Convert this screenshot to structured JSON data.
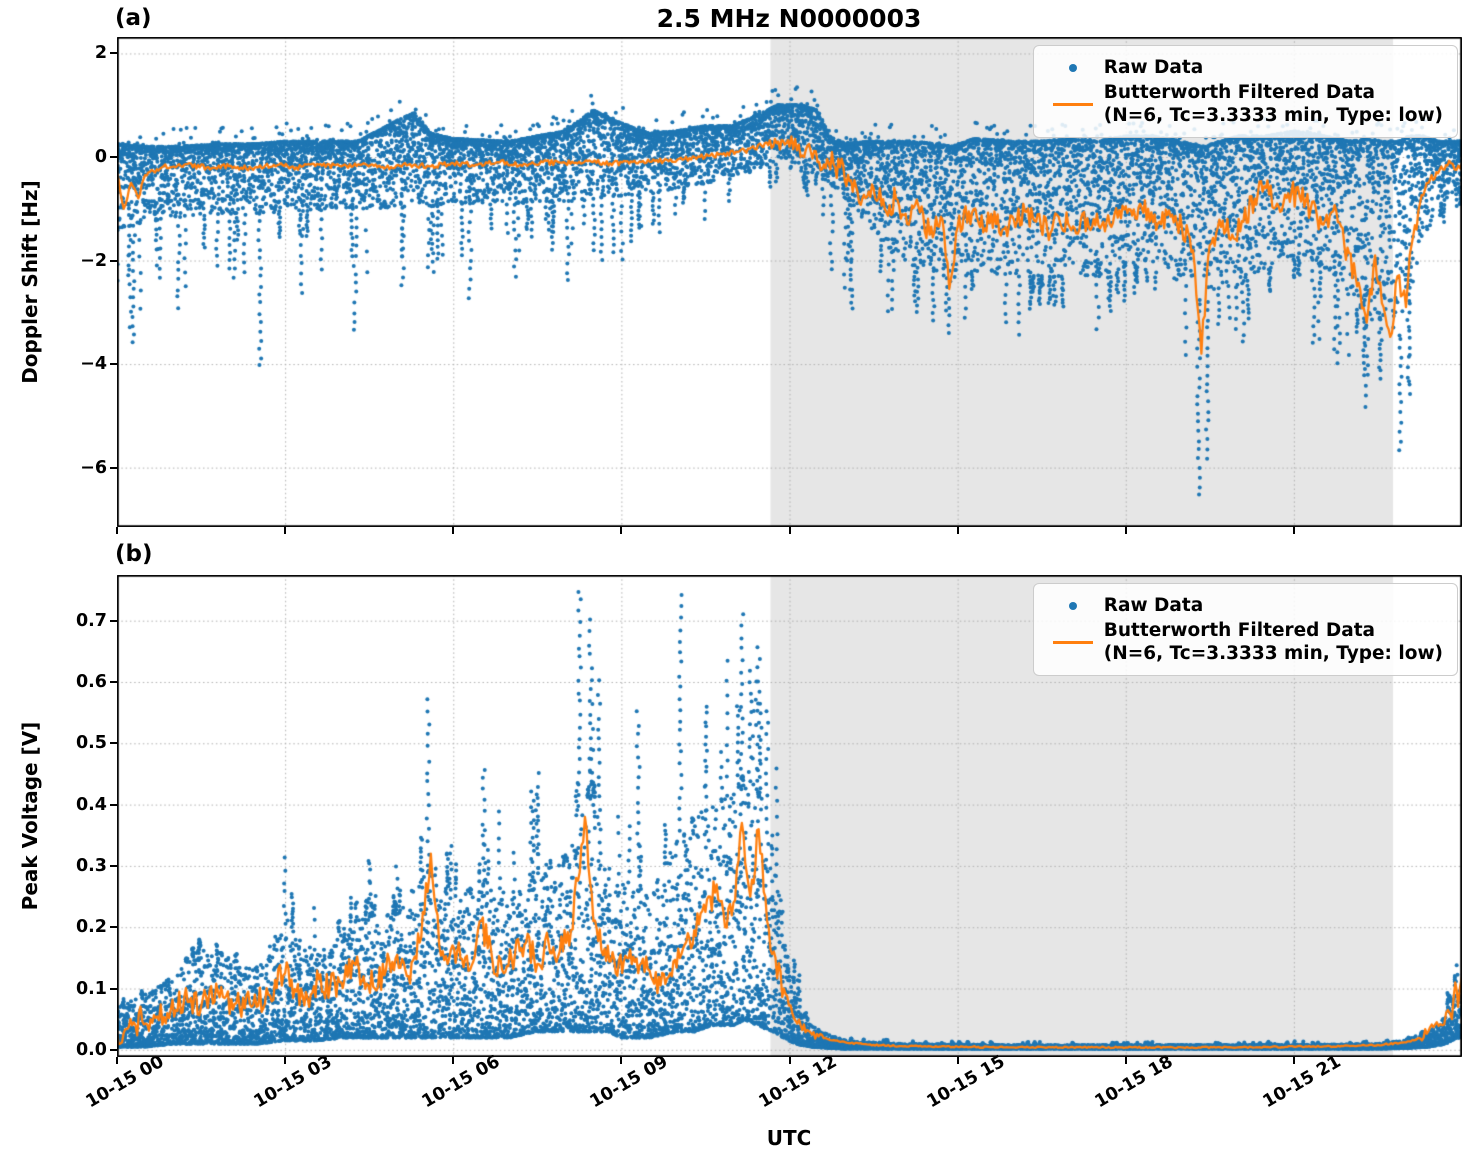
{
  "figure": {
    "title": "2.5 MHz N0000003",
    "xlabel": "UTC"
  },
  "colors": {
    "raw": "#1f77b4",
    "filtered": "#ff7f0e",
    "shade": "#e6e6e6",
    "grid": "#b0b0b0",
    "spine": "#000000"
  },
  "legend": {
    "items": [
      {
        "label": "Raw Data",
        "marker": "dot"
      },
      {
        "label": "Butterworth Filtered Data",
        "label2": "(N=6, Tc=3.3333 min, Type: low)",
        "marker": "line"
      }
    ]
  },
  "xaxis": {
    "range_hours": [
      0,
      24
    ],
    "tick_hours": [
      0,
      3,
      6,
      9,
      12,
      15,
      18,
      21
    ],
    "tick_labels": [
      "10-15 00",
      "10-15 03",
      "10-15 06",
      "10-15 09",
      "10-15 12",
      "10-15 15",
      "10-15 18",
      "10-15 21"
    ],
    "shade_hours": [
      11.66,
      22.77
    ]
  },
  "chart_data": [
    {
      "id": "doppler",
      "type": "scatter+line",
      "panel_label": "(a)",
      "ylabel": "Doppler Shift [Hz]",
      "ylim": [
        -7.147,
        2.318
      ],
      "yticks": [
        {
          "v": 2,
          "label": "2"
        },
        {
          "v": 0,
          "label": "0"
        },
        {
          "v": -2,
          "label": "−2"
        },
        {
          "v": -4,
          "label": "−4"
        },
        {
          "v": -6,
          "label": "−6"
        }
      ],
      "series_names": [
        "Raw Data",
        "Butterworth Filtered Data (N=6, Tc=3.3333 min, Type: low)"
      ],
      "raw_envelope": {
        "t": [
          0,
          0.5,
          1,
          2,
          2.5,
          3,
          4,
          4.3,
          5,
          5.3,
          5.6,
          6,
          7,
          8,
          8.5,
          9,
          9.5,
          10,
          10.5,
          11,
          11.4,
          11.8,
          12.2,
          12.5,
          12.7,
          13,
          13.4,
          13.8,
          14.2,
          14.6,
          14.9,
          15.3,
          16,
          16.5,
          17,
          17.5,
          18,
          18.5,
          19,
          19.35,
          19.7,
          20,
          20.5,
          21,
          21.35,
          21.75,
          22,
          22.3,
          22.6,
          22.9,
          23.05,
          23.3,
          23.6,
          24
        ],
        "hi": [
          0.25,
          0.2,
          0.2,
          0.25,
          0.25,
          0.3,
          0.3,
          0.3,
          0.7,
          0.85,
          0.45,
          0.35,
          0.3,
          0.5,
          0.9,
          0.65,
          0.45,
          0.5,
          0.6,
          0.6,
          0.8,
          1.0,
          1.0,
          0.9,
          0.4,
          0.25,
          0.3,
          0.3,
          0.3,
          0.25,
          0.2,
          0.35,
          0.3,
          0.3,
          0.35,
          0.3,
          0.4,
          0.4,
          0.3,
          0.2,
          0.3,
          0.4,
          0.4,
          0.5,
          0.45,
          0.35,
          0.3,
          0.35,
          0.3,
          0.3,
          0.4,
          0.4,
          0.3,
          0.3
        ],
        "lo": [
          -1.4,
          -1.25,
          -1.15,
          -1.1,
          -1.1,
          -1.05,
          -1.0,
          -1.0,
          -1.0,
          -0.95,
          -0.95,
          -0.9,
          -0.9,
          -0.85,
          -0.8,
          -0.75,
          -0.7,
          -0.6,
          -0.5,
          -0.4,
          -0.25,
          -0.15,
          -0.3,
          -0.35,
          -0.5,
          -0.8,
          -1.3,
          -1.8,
          -2.1,
          -2.2,
          -2.4,
          -2.2,
          -2.3,
          -2.3,
          -2.3,
          -2.3,
          -2.1,
          -2.2,
          -2.4,
          -2.9,
          -2.5,
          -2.5,
          -2.2,
          -1.9,
          -2.0,
          -2.3,
          -2.7,
          -3.3,
          -3.1,
          -3.5,
          -2.8,
          -1.7,
          -0.9,
          -0.55
        ],
        "tail": [
          -3.6,
          -3.0,
          -2.6,
          -2.4,
          -4.0,
          -2.4,
          -2.4,
          -3.3,
          -2.3,
          -2.2,
          -2.3,
          -2.5,
          -2.1,
          -2.0,
          -2.2,
          -1.7,
          -1.6,
          -1.4,
          -1.2,
          -0.9,
          -0.7,
          -0.5,
          -0.7,
          -1.0,
          -2.0,
          -2.8,
          -3.2,
          -3.0,
          -3.0,
          -3.2,
          -3.4,
          -3.0,
          -3.3,
          -2.9,
          -3.0,
          -3.2,
          -2.8,
          -2.9,
          -3.5,
          -6.55,
          -3.2,
          -3.4,
          -3.0,
          -2.6,
          -3.6,
          -3.9,
          -4.1,
          -4.8,
          -4.3,
          -5.65,
          -4.6,
          -2.6,
          -1.5,
          -0.9
        ]
      },
      "outlier_columns": [
        [
          0.3,
          -3.6
        ],
        [
          1.1,
          -2.9
        ],
        [
          2.55,
          -4.05
        ],
        [
          3.3,
          -2.6
        ],
        [
          4.25,
          -3.35
        ],
        [
          5.1,
          -2.5
        ],
        [
          6.3,
          -2.7
        ],
        [
          7.1,
          -2.3
        ],
        [
          8.05,
          -2.4
        ],
        [
          9.0,
          -2.0
        ],
        [
          12.75,
          -2.2
        ],
        [
          13.1,
          -2.9
        ],
        [
          14.85,
          -3.4
        ],
        [
          16.1,
          -3.4
        ],
        [
          17.5,
          -3.3
        ],
        [
          19.3,
          -6.55
        ],
        [
          19.45,
          -5.8
        ],
        [
          20.1,
          -3.6
        ],
        [
          21.35,
          -3.6
        ],
        [
          21.8,
          -3.95
        ],
        [
          22.3,
          -4.8
        ],
        [
          22.55,
          -4.3
        ],
        [
          22.9,
          -5.65
        ],
        [
          23.05,
          -4.6
        ]
      ],
      "filtered": {
        "t": [
          0,
          0.12,
          0.25,
          0.38,
          0.5,
          0.8,
          1.2,
          1.6,
          2,
          2.4,
          2.8,
          3.2,
          3.6,
          4,
          4.4,
          4.8,
          5.2,
          5.6,
          6,
          6.4,
          6.8,
          7.2,
          7.6,
          8,
          8.4,
          8.8,
          9.2,
          9.6,
          10,
          10.4,
          10.8,
          11.2,
          11.5,
          11.8,
          12,
          12.1,
          12.2,
          12.35,
          12.5,
          12.7,
          12.9,
          13.1,
          13.3,
          13.5,
          13.7,
          13.9,
          14.1,
          14.3,
          14.5,
          14.7,
          14.85,
          15,
          15.2,
          15.4,
          15.6,
          15.8,
          16,
          16.2,
          16.4,
          16.6,
          16.8,
          17,
          17.2,
          17.4,
          17.6,
          17.8,
          18,
          18.2,
          18.4,
          18.6,
          18.8,
          19,
          19.2,
          19.35,
          19.5,
          19.7,
          19.9,
          20.1,
          20.3,
          20.5,
          20.7,
          20.9,
          21.1,
          21.3,
          21.5,
          21.7,
          21.9,
          22.1,
          22.3,
          22.45,
          22.6,
          22.75,
          22.85,
          23,
          23.1,
          23.25,
          23.4,
          23.6,
          23.8,
          23.9,
          24
        ],
        "v": [
          -0.3,
          -1.0,
          -0.5,
          -0.8,
          -0.35,
          -0.2,
          -0.15,
          -0.2,
          -0.18,
          -0.22,
          -0.15,
          -0.2,
          -0.15,
          -0.18,
          -0.12,
          -0.2,
          -0.15,
          -0.18,
          -0.12,
          -0.15,
          -0.1,
          -0.15,
          -0.1,
          -0.12,
          -0.08,
          -0.12,
          -0.1,
          -0.08,
          -0.05,
          0,
          0.05,
          0.12,
          0.22,
          0.3,
          0.2,
          0.35,
          0,
          0.25,
          -0.1,
          -0.12,
          -0.2,
          -0.45,
          -0.8,
          -0.6,
          -1.0,
          -0.8,
          -1.3,
          -0.95,
          -1.5,
          -1.15,
          -2.55,
          -1.35,
          -1.05,
          -1.35,
          -1.1,
          -1.4,
          -1.2,
          -1.05,
          -1.25,
          -1.4,
          -1.15,
          -1.35,
          -1.2,
          -1.35,
          -1.25,
          -1.1,
          -0.95,
          -1.2,
          -1.0,
          -1.25,
          -1.15,
          -1.35,
          -1.8,
          -3.8,
          -1.7,
          -1.35,
          -1.5,
          -1.25,
          -0.8,
          -0.6,
          -0.9,
          -0.7,
          -0.75,
          -1.0,
          -1.3,
          -1.05,
          -1.7,
          -2.3,
          -3.2,
          -1.9,
          -2.9,
          -3.4,
          -2.3,
          -2.9,
          -1.7,
          -0.9,
          -0.5,
          -0.25,
          -0.12,
          -0.25,
          -0.1
        ]
      },
      "line_jitter": [
        {
          "until": 11.6,
          "amp": 0.05
        },
        {
          "until": 12.7,
          "amp": 0.16
        },
        {
          "until": 23.3,
          "amp": 0.24
        },
        {
          "until": 24,
          "amp": 0.08
        }
      ],
      "scatter_bias": "top"
    },
    {
      "id": "voltage",
      "type": "scatter+line",
      "panel_label": "(b)",
      "ylabel": "Peak Voltage [V]",
      "ylim": [
        -0.0117,
        0.7745
      ],
      "yticks": [
        {
          "v": 0.7,
          "label": "0.7"
        },
        {
          "v": 0.6,
          "label": "0.6"
        },
        {
          "v": 0.5,
          "label": "0.5"
        },
        {
          "v": 0.4,
          "label": "0.4"
        },
        {
          "v": 0.3,
          "label": "0.3"
        },
        {
          "v": 0.2,
          "label": "0.2"
        },
        {
          "v": 0.1,
          "label": "0.1"
        },
        {
          "v": 0.0,
          "label": "0.0"
        }
      ],
      "series_names": [
        "Raw Data",
        "Butterworth Filtered Data (N=6, Tc=3.3333 min, Type: low)"
      ],
      "raw_envelope": {
        "t": [
          0,
          0.5,
          1,
          1.5,
          2,
          2.5,
          3,
          3.3,
          3.6,
          4,
          4.5,
          5,
          5.5,
          5.7,
          6,
          6.5,
          7,
          7.5,
          8,
          8.25,
          8.5,
          8.75,
          9,
          9.5,
          10,
          10.3,
          10.6,
          11,
          11.2,
          11.45,
          11.7,
          11.9,
          12.1,
          12.4,
          12.7,
          13,
          14,
          16,
          18,
          20,
          22,
          22.5,
          23,
          23.4,
          23.7,
          23.9,
          24
        ],
        "hi": [
          0.07,
          0.09,
          0.12,
          0.17,
          0.15,
          0.13,
          0.22,
          0.18,
          0.16,
          0.2,
          0.22,
          0.22,
          0.3,
          0.3,
          0.25,
          0.28,
          0.25,
          0.3,
          0.32,
          0.4,
          0.42,
          0.3,
          0.28,
          0.25,
          0.35,
          0.38,
          0.4,
          0.42,
          0.45,
          0.42,
          0.35,
          0.22,
          0.1,
          0.04,
          0.025,
          0.015,
          0.01,
          0.008,
          0.008,
          0.008,
          0.009,
          0.01,
          0.016,
          0.03,
          0.055,
          0.11,
          0.09
        ],
        "lo": [
          0.005,
          0.005,
          0.01,
          0.01,
          0.01,
          0.01,
          0.015,
          0.015,
          0.015,
          0.02,
          0.02,
          0.02,
          0.02,
          0.02,
          0.02,
          0.02,
          0.02,
          0.03,
          0.03,
          0.03,
          0.03,
          0.03,
          0.02,
          0.02,
          0.03,
          0.03,
          0.04,
          0.04,
          0.05,
          0.04,
          0.03,
          0.02,
          0.01,
          0.005,
          0.003,
          0.002,
          0.002,
          0.002,
          0.002,
          0.002,
          0.002,
          0.002,
          0.003,
          0.005,
          0.01,
          0.02,
          0.02
        ],
        "tail": [
          0.08,
          0.1,
          0.14,
          0.18,
          0.17,
          0.15,
          0.31,
          0.3,
          0.22,
          0.26,
          0.31,
          0.3,
          0.45,
          0.57,
          0.35,
          0.46,
          0.38,
          0.46,
          0.5,
          0.75,
          0.66,
          0.5,
          0.4,
          0.37,
          0.74,
          0.55,
          0.6,
          0.66,
          0.71,
          0.66,
          0.55,
          0.35,
          0.15,
          0.06,
          0.035,
          0.02,
          0.012,
          0.01,
          0.01,
          0.01,
          0.011,
          0.013,
          0.02,
          0.042,
          0.075,
          0.145,
          0.12
        ]
      },
      "outlier_columns": [
        [
          3.0,
          0.31
        ],
        [
          4.5,
          0.31
        ],
        [
          5.0,
          0.3
        ],
        [
          5.55,
          0.57
        ],
        [
          6.55,
          0.46
        ],
        [
          7.5,
          0.45
        ],
        [
          8.25,
          0.75
        ],
        [
          8.45,
          0.7
        ],
        [
          8.6,
          0.6
        ],
        [
          9.3,
          0.55
        ],
        [
          10.05,
          0.74
        ],
        [
          10.5,
          0.55
        ],
        [
          11.15,
          0.71
        ],
        [
          11.3,
          0.62
        ],
        [
          11.45,
          0.66
        ],
        [
          11.6,
          0.55
        ],
        [
          23.9,
          0.135
        ]
      ],
      "filtered": {
        "t": [
          0,
          0.3,
          0.6,
          0.9,
          1.2,
          1.5,
          1.8,
          2.1,
          2.4,
          2.7,
          3,
          3.2,
          3.4,
          3.6,
          3.8,
          4,
          4.2,
          4.4,
          4.6,
          4.8,
          5,
          5.2,
          5.4,
          5.6,
          5.75,
          5.9,
          6.1,
          6.3,
          6.5,
          6.7,
          6.9,
          7.1,
          7.3,
          7.5,
          7.7,
          7.9,
          8.1,
          8.35,
          8.5,
          8.7,
          8.9,
          9.1,
          9.3,
          9.5,
          9.7,
          9.9,
          10.1,
          10.3,
          10.5,
          10.7,
          10.85,
          11,
          11.15,
          11.3,
          11.45,
          11.6,
          11.75,
          11.9,
          12.05,
          12.2,
          12.4,
          12.7,
          13,
          13.5,
          14,
          15,
          16,
          17,
          18,
          19,
          20,
          21,
          22,
          22.5,
          23,
          23.2,
          23.4,
          23.55,
          23.65,
          23.75,
          23.82,
          23.88,
          23.93,
          24
        ],
        "v": [
          0.03,
          0.045,
          0.05,
          0.06,
          0.085,
          0.07,
          0.095,
          0.075,
          0.07,
          0.09,
          0.125,
          0.095,
          0.085,
          0.115,
          0.1,
          0.11,
          0.145,
          0.12,
          0.1,
          0.13,
          0.155,
          0.12,
          0.175,
          0.32,
          0.17,
          0.14,
          0.175,
          0.13,
          0.21,
          0.145,
          0.125,
          0.155,
          0.175,
          0.14,
          0.175,
          0.16,
          0.195,
          0.38,
          0.21,
          0.165,
          0.125,
          0.15,
          0.125,
          0.13,
          0.105,
          0.12,
          0.165,
          0.195,
          0.225,
          0.27,
          0.2,
          0.24,
          0.37,
          0.25,
          0.36,
          0.21,
          0.15,
          0.1,
          0.06,
          0.04,
          0.025,
          0.017,
          0.012,
          0.008,
          0.006,
          0.005,
          0.004,
          0.004,
          0.004,
          0.004,
          0.004,
          0.005,
          0.006,
          0.008,
          0.012,
          0.018,
          0.03,
          0.045,
          0.04,
          0.065,
          0.05,
          0.11,
          0.07,
          0.12
        ]
      },
      "line_jitter": [
        {
          "until": 11.9,
          "amp": 0.024
        },
        {
          "until": 12.6,
          "amp": 0.006
        },
        {
          "until": 23.2,
          "amp": 0.0012
        },
        {
          "until": 24,
          "amp": 0.008
        }
      ],
      "scatter_bias": "bottom"
    }
  ]
}
